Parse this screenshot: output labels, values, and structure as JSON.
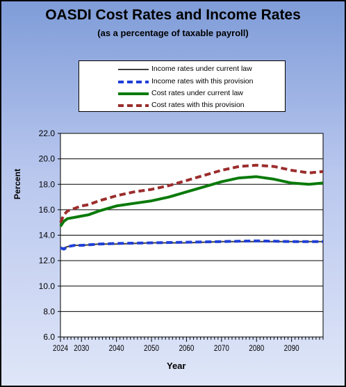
{
  "chart_data": {
    "type": "line",
    "title": "OASDI Cost Rates and Income Rates",
    "subtitle": "(as a percentage of taxable payroll)",
    "xlabel": "Year",
    "ylabel": "Percent",
    "xlim": [
      2024,
      2099
    ],
    "ylim": [
      6.0,
      22.0
    ],
    "x_ticks": [
      "2024",
      "2030",
      "2040",
      "2050",
      "2060",
      "2070",
      "2080",
      "2090"
    ],
    "y_ticks": [
      "6.0",
      "8.0",
      "10.0",
      "12.0",
      "14.0",
      "16.0",
      "18.0",
      "20.0",
      "22.0"
    ],
    "legend_position": "top",
    "grid": "horizontal",
    "series": [
      {
        "name": "Income rates under current law",
        "color": "#404040",
        "style": "solid",
        "x": [
          2024,
          2025,
          2026,
          2028,
          2030,
          2035,
          2040,
          2050,
          2060,
          2070,
          2080,
          2090,
          2099
        ],
        "values": [
          13.0,
          13.0,
          13.1,
          13.2,
          13.2,
          13.3,
          13.3,
          13.4,
          13.4,
          13.5,
          13.5,
          13.5,
          13.5
        ]
      },
      {
        "name": "Income rates with this provision",
        "color": "#1f3fd6",
        "style": "dashed",
        "x": [
          2024,
          2025,
          2026,
          2028,
          2030,
          2035,
          2040,
          2050,
          2060,
          2070,
          2080,
          2090,
          2099
        ],
        "values": [
          13.0,
          12.9,
          13.1,
          13.2,
          13.2,
          13.3,
          13.35,
          13.4,
          13.45,
          13.5,
          13.55,
          13.5,
          13.5
        ]
      },
      {
        "name": "Cost rates under current law",
        "color": "#0a7a0a",
        "style": "solid",
        "x": [
          2024,
          2025,
          2026,
          2028,
          2030,
          2032,
          2035,
          2040,
          2045,
          2050,
          2055,
          2060,
          2065,
          2070,
          2075,
          2080,
          2085,
          2090,
          2095,
          2099
        ],
        "values": [
          14.7,
          15.1,
          15.3,
          15.4,
          15.5,
          15.6,
          15.9,
          16.3,
          16.5,
          16.7,
          17.0,
          17.4,
          17.8,
          18.2,
          18.5,
          18.6,
          18.4,
          18.1,
          18.0,
          18.1
        ]
      },
      {
        "name": "Cost rates with this provision",
        "color": "#9b2d2d",
        "style": "dashed",
        "x": [
          2024,
          2025,
          2026,
          2028,
          2030,
          2032,
          2035,
          2040,
          2045,
          2050,
          2055,
          2060,
          2065,
          2070,
          2075,
          2080,
          2085,
          2090,
          2095,
          2099
        ],
        "values": [
          15.0,
          15.6,
          15.9,
          16.1,
          16.3,
          16.4,
          16.7,
          17.1,
          17.4,
          17.6,
          17.9,
          18.3,
          18.7,
          19.1,
          19.4,
          19.5,
          19.4,
          19.1,
          18.9,
          19.0
        ]
      }
    ]
  }
}
